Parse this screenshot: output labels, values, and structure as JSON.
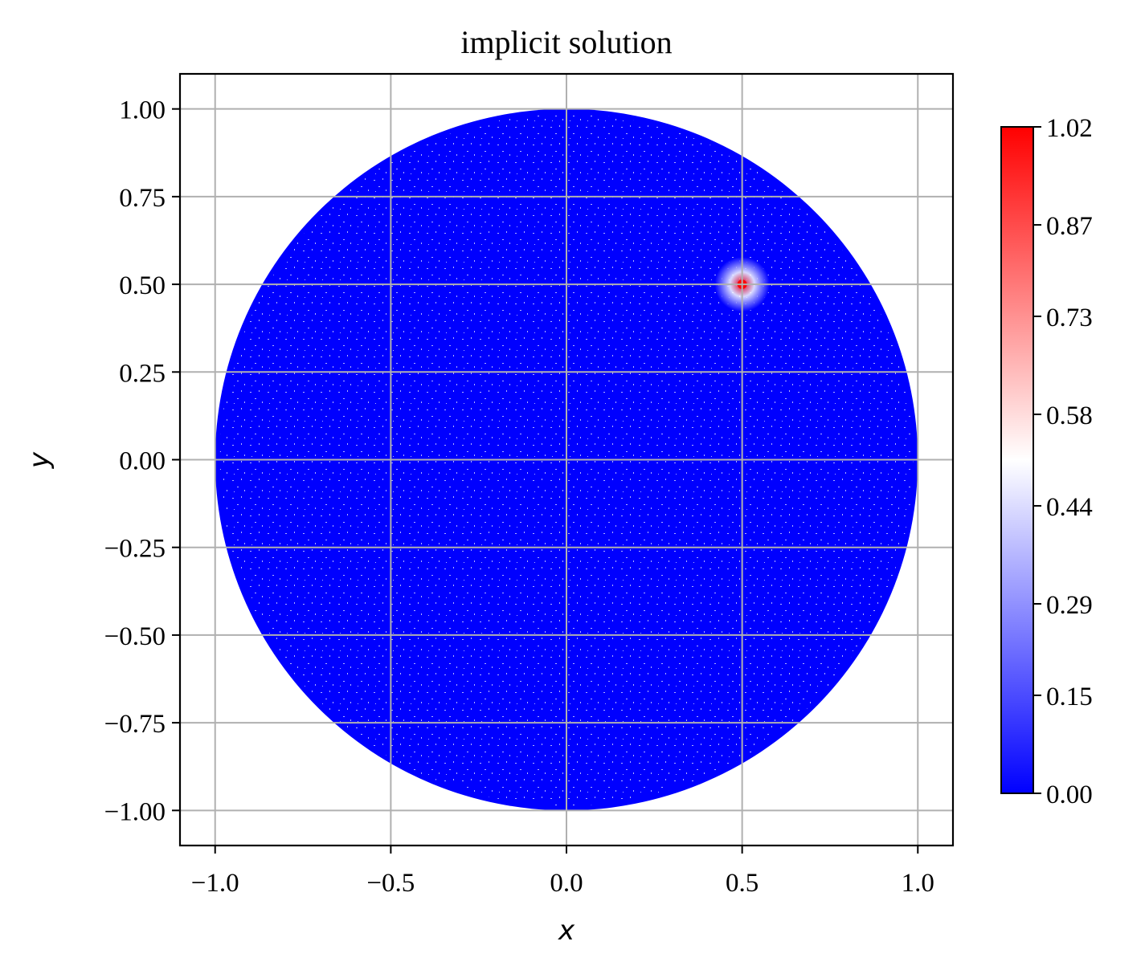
{
  "chart_data": {
    "type": "heatmap",
    "title": "implicit solution",
    "xlabel": "x",
    "ylabel": "y",
    "xlim": [
      -1.1,
      1.1
    ],
    "ylim": [
      -1.1,
      1.1
    ],
    "xticks": [
      -1.0,
      -0.5,
      0.0,
      0.5,
      1.0
    ],
    "xtick_labels": [
      "−1.0",
      "−0.5",
      "0.0",
      "0.5",
      "1.0"
    ],
    "yticks": [
      1.0,
      0.75,
      0.5,
      0.25,
      0.0,
      -0.25,
      -0.5,
      -0.75,
      -1.0
    ],
    "ytick_labels": [
      "1.00",
      "0.75",
      "0.50",
      "0.25",
      "0.00",
      "−0.25",
      "−0.50",
      "−0.75",
      "−1.00"
    ],
    "grid": true,
    "domain": {
      "shape": "disk",
      "center": [
        0.0,
        0.0
      ],
      "radius": 1.0
    },
    "field": {
      "background_value": 0.0,
      "peak_center": [
        0.5,
        0.5
      ],
      "peak_value": 1.02,
      "peak_radius": 0.03
    },
    "colorbar": {
      "colormap": "bwr",
      "colors": {
        "low": "#0000ff",
        "mid": "#ffffff",
        "high": "#ff0000"
      },
      "vmin": 0.0,
      "vmax": 1.02,
      "ticks": [
        1.02,
        0.87,
        0.73,
        0.58,
        0.44,
        0.29,
        0.15,
        0.0
      ],
      "tick_labels": [
        "1.02",
        "0.87",
        "0.73",
        "0.58",
        "0.44",
        "0.29",
        "0.15",
        "0.00"
      ],
      "placement": "right"
    }
  }
}
